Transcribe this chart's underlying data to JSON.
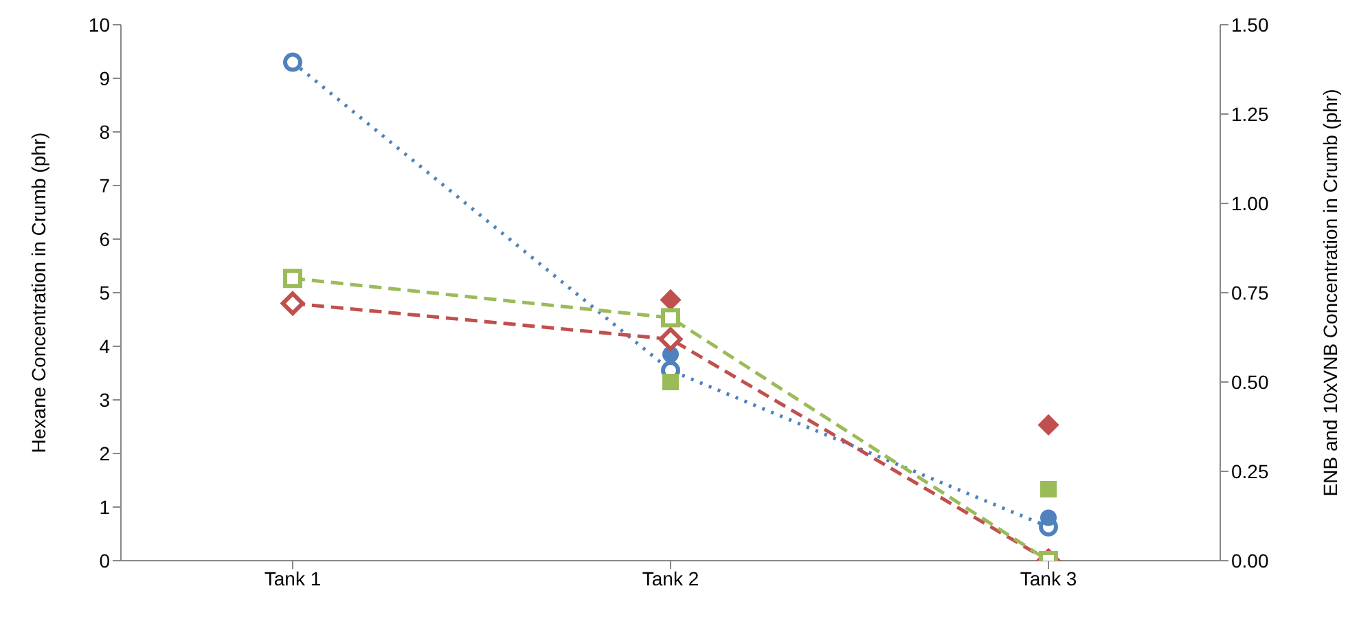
{
  "chart_data": {
    "type": "line",
    "categories": [
      "Tank 1",
      "Tank 2",
      "Tank 3"
    ],
    "ylabel": "Hexane Concentration in Crumb (phr)",
    "y2label": "ENB and 10xVNB Concentration in Crumb (phr)",
    "ylim": [
      0,
      10
    ],
    "yticks": [
      0,
      1,
      2,
      3,
      4,
      5,
      6,
      7,
      8,
      9,
      10
    ],
    "y2lim": [
      0,
      1.5
    ],
    "y2ticks": [
      {
        "value": 0,
        "label": "0.00"
      },
      {
        "value": 0.25,
        "label": "0.25"
      },
      {
        "value": 0.5,
        "label": "0.50"
      },
      {
        "value": 0.75,
        "label": "0.75"
      },
      {
        "value": 1,
        "label": "1.00"
      },
      {
        "value": 1.25,
        "label": "1.25"
      },
      {
        "value": 1.5,
        "label": "1.50"
      }
    ],
    "grid": false,
    "legend": false,
    "series": [
      {
        "color": "#4f81bd",
        "marker": "circle",
        "line_style": "dotted",
        "values": [
          9.3,
          3.55,
          0.63
        ]
      },
      {
        "type": "scatter",
        "color": "#4f81bd",
        "marker": "circle",
        "values": [
          null,
          3.85,
          0.8
        ]
      },
      {
        "color": "#c0504d",
        "marker": "diamond",
        "line_style": "dashed",
        "axis": "y2",
        "values": [
          0.72,
          0.62,
          0
        ]
      },
      {
        "type": "scatter",
        "color": "#c0504d",
        "marker": "diamond",
        "axis": "y2",
        "values": [
          null,
          0.73,
          0.38
        ]
      },
      {
        "color": "#9bbb59",
        "marker": "square",
        "line_style": "dashed",
        "axis": "y2",
        "values": [
          0.79,
          0.68,
          0
        ]
      },
      {
        "type": "scatter",
        "color": "#9bbb59",
        "marker": "square",
        "axis": "y2",
        "values": [
          null,
          0.5,
          0.2
        ]
      }
    ]
  }
}
